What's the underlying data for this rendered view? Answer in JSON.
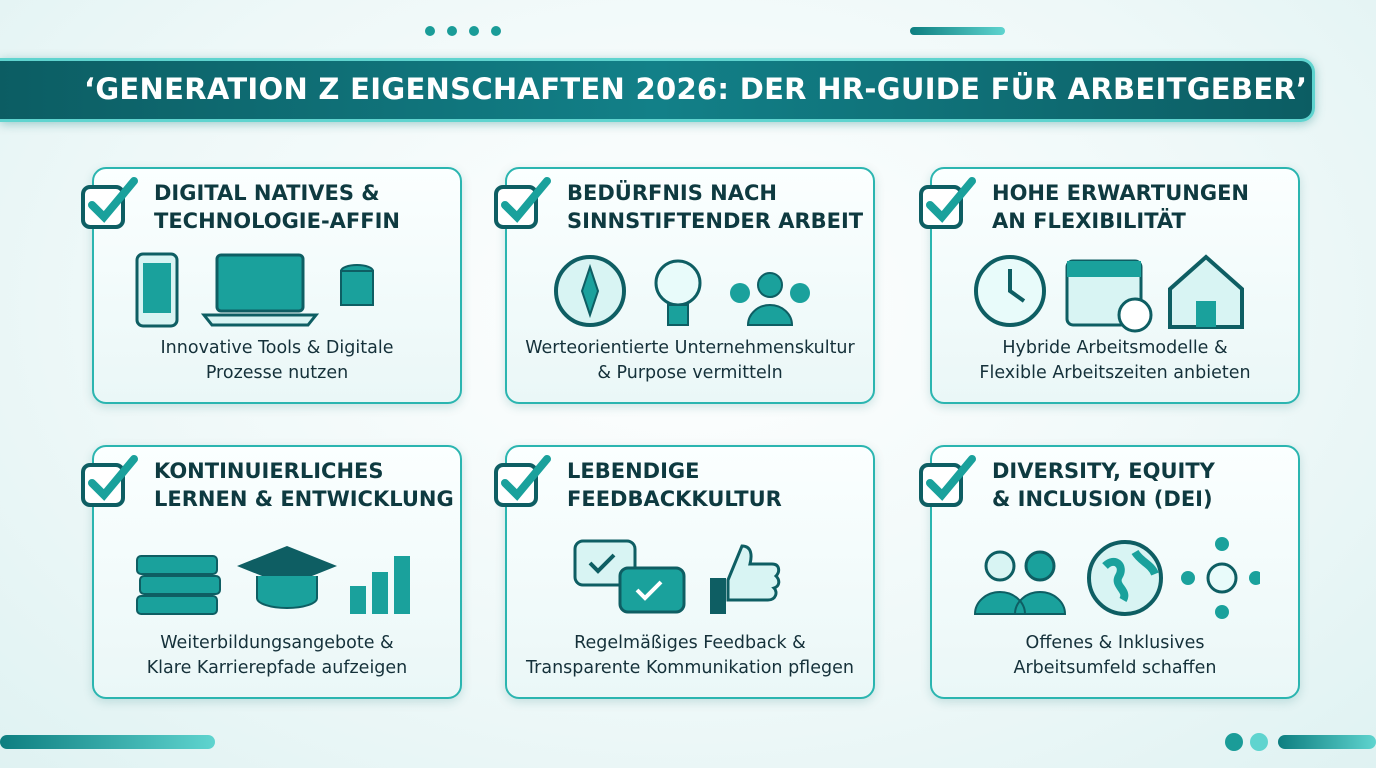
{
  "title": "‘GENERATION Z EIGENSCHAFTEN 2026: DER HR-GUIDE FÜR ARBEITGEBER’",
  "cards": [
    {
      "title": [
        "DIGITAL NATIVES &",
        "TECHNOLOGIE-AFFIN"
      ],
      "description": [
        "Innovative Tools & Digitale",
        "Prozesse nutzen"
      ]
    },
    {
      "title": [
        "BEDÜRFNIS NACH",
        "SINNSTIFTENDER ARBEIT"
      ],
      "description": [
        "Werteorientierte Unternehmenskultur",
        "& Purpose vermitteln"
      ]
    },
    {
      "title": [
        "HOHE ERWARTUNGEN",
        "AN FLEXIBILITÄT"
      ],
      "description": [
        "Hybride Arbeitsmodelle &",
        "Flexible Arbeitszeiten anbieten"
      ]
    },
    {
      "title": [
        "KONTINUIERLICHES",
        "LERNEN & ENTWICKLUNG"
      ],
      "description": [
        "Weiterbildungsangebote &",
        "Klare Karrierepfade aufzeigen"
      ]
    },
    {
      "title": [
        "LEBENDIGE",
        "FEEDBACKKULTUR"
      ],
      "description": [
        "Regelmäßiges Feedback &",
        "Transparente Kommunikation pflegen"
      ]
    },
    {
      "title": [
        "DIVERSITY, EQUITY",
        "& INCLUSION (DEI)"
      ],
      "description": [
        "Offenes & Inklusives",
        "Arbeitsumfeld schaffen"
      ]
    }
  ]
}
